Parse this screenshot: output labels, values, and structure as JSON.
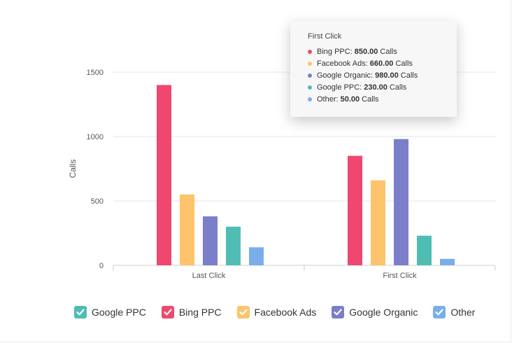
{
  "chart_data": {
    "type": "bar",
    "ylabel": "Calls",
    "ylim": [
      0,
      1500
    ],
    "yticks": [
      "0",
      "500",
      "1000",
      "1500"
    ],
    "categories": [
      "Last Click",
      "First Click"
    ],
    "series": [
      {
        "name": "Bing PPC",
        "color": "#EF476F",
        "values": [
          1400,
          850
        ]
      },
      {
        "name": "Facebook Ads",
        "color": "#FDC46C",
        "values": [
          550,
          660
        ]
      },
      {
        "name": "Google Organic",
        "color": "#7B7FC9",
        "values": [
          380,
          980
        ]
      },
      {
        "name": "Google PPC",
        "color": "#4FBDB4",
        "values": [
          300,
          230
        ]
      },
      {
        "name": "Other",
        "color": "#7AAEEA",
        "values": [
          140,
          50
        ]
      }
    ],
    "grid": true,
    "legend_position": "bottom"
  },
  "tooltip": {
    "title": "First Click",
    "unit": "Calls",
    "rows": [
      {
        "label": "Bing PPC:",
        "value": "850.00",
        "color": "#EF476F"
      },
      {
        "label": "Facebook Ads:",
        "value": "660.00",
        "color": "#FDC46C"
      },
      {
        "label": "Google Organic:",
        "value": "980.00",
        "color": "#7B7FC9"
      },
      {
        "label": "Google PPC:",
        "value": "230.00",
        "color": "#4FBDB4"
      },
      {
        "label": "Other:",
        "value": "50.00",
        "color": "#7AAEEA"
      }
    ]
  },
  "legend": {
    "items": [
      {
        "label": "Google PPC",
        "color": "#4FBDB4",
        "icon": "check-icon"
      },
      {
        "label": "Bing PPC",
        "color": "#EF476F",
        "icon": "check-icon"
      },
      {
        "label": "Facebook Ads",
        "color": "#FDC46C",
        "icon": "check-icon"
      },
      {
        "label": "Google Organic",
        "color": "#7B7FC9",
        "icon": "check-icon"
      },
      {
        "label": "Other",
        "color": "#7AAEEA",
        "icon": "check-icon"
      }
    ]
  }
}
